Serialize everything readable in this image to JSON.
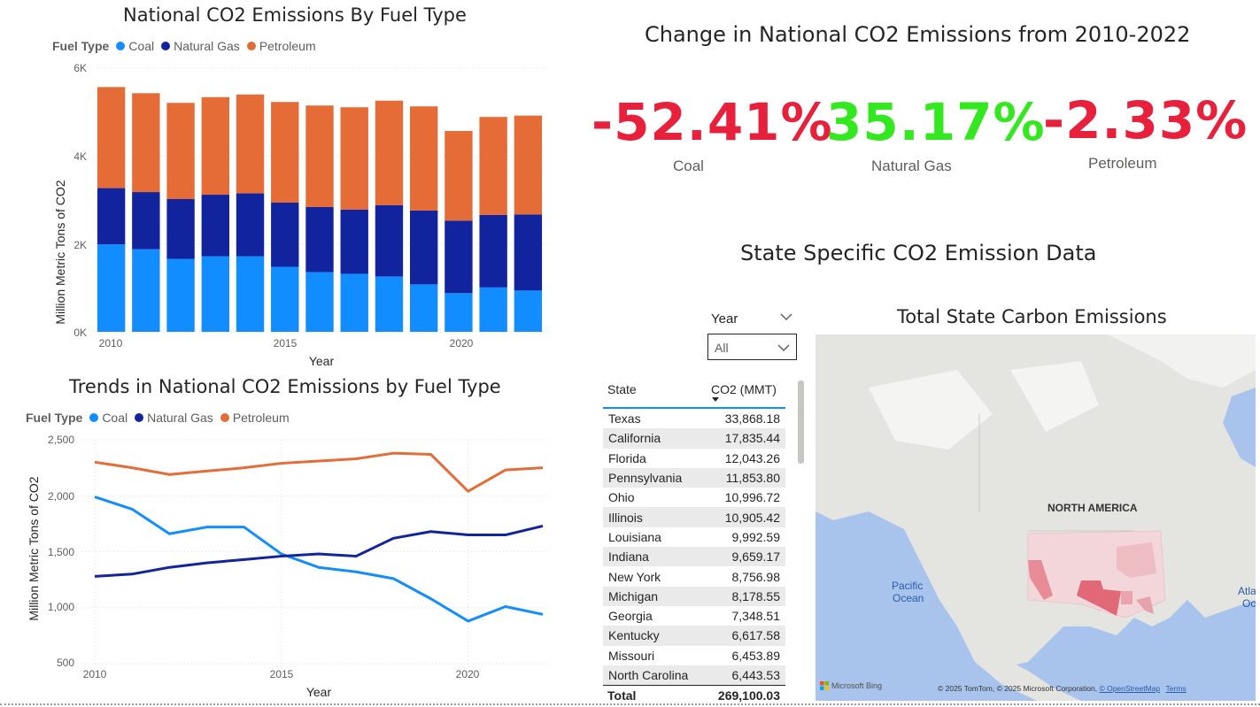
{
  "colors": {
    "coal": "#118DFF",
    "natural_gas": "#12239E",
    "petroleum": "#E66C37",
    "negative": "#E8203B",
    "positive": "#33E81F"
  },
  "bar_chart": {
    "title": "National CO2 Emissions By Fuel Type",
    "legend_title": "Fuel Type",
    "legend": [
      "Coal",
      "Natural Gas",
      "Petroleum"
    ],
    "xlabel": "Year",
    "ylabel": "Million Metric Tons of CO2",
    "y_ticks": [
      "6K",
      "4K",
      "2K",
      "0K"
    ],
    "x_ticks": [
      "2010",
      "2015",
      "2020"
    ]
  },
  "line_chart": {
    "title": "Trends in National CO2 Emissions by Fuel Type",
    "legend_title": "Fuel Type",
    "legend": [
      "Coal",
      "Natural Gas",
      "Petroleum"
    ],
    "xlabel": "Year",
    "ylabel": "Million Metric Tons of CO2",
    "y_ticks": [
      "2,500",
      "2,000",
      "1,500",
      "1,000",
      "500"
    ],
    "x_ticks": [
      "2010",
      "2015",
      "2020"
    ]
  },
  "chart_data": [
    {
      "type": "bar",
      "stacked": true,
      "title": "National CO2 Emissions By Fuel Type",
      "xlabel": "Year",
      "ylabel": "Million Metric Tons of CO2",
      "ylim": [
        0,
        6000
      ],
      "categories": [
        2010,
        2011,
        2012,
        2013,
        2014,
        2015,
        2016,
        2017,
        2018,
        2019,
        2020,
        2021,
        2022
      ],
      "series": [
        {
          "name": "Coal",
          "values": [
            1990,
            1880,
            1660,
            1720,
            1720,
            1480,
            1360,
            1320,
            1260,
            1080,
            880,
            1010,
            940
          ]
        },
        {
          "name": "Natural Gas",
          "values": [
            1280,
            1300,
            1360,
            1400,
            1430,
            1460,
            1480,
            1460,
            1620,
            1680,
            1650,
            1650,
            1730
          ]
        },
        {
          "name": "Petroleum",
          "values": [
            2300,
            2250,
            2190,
            2220,
            2250,
            2290,
            2310,
            2330,
            2380,
            2370,
            2040,
            2230,
            2250
          ]
        }
      ]
    },
    {
      "type": "line",
      "title": "Trends in National CO2 Emissions by Fuel Type",
      "xlabel": "Year",
      "ylabel": "Million Metric Tons of CO2",
      "ylim": [
        500,
        2500
      ],
      "x": [
        2010,
        2011,
        2012,
        2013,
        2014,
        2015,
        2016,
        2017,
        2018,
        2019,
        2020,
        2021,
        2022
      ],
      "series": [
        {
          "name": "Coal",
          "values": [
            1990,
            1880,
            1660,
            1720,
            1720,
            1480,
            1360,
            1320,
            1260,
            1080,
            880,
            1010,
            940
          ]
        },
        {
          "name": "Natural Gas",
          "values": [
            1280,
            1300,
            1360,
            1400,
            1430,
            1460,
            1480,
            1460,
            1620,
            1680,
            1650,
            1650,
            1730
          ]
        },
        {
          "name": "Petroleum",
          "values": [
            2300,
            2250,
            2190,
            2220,
            2250,
            2290,
            2310,
            2330,
            2380,
            2370,
            2040,
            2230,
            2250
          ]
        }
      ]
    }
  ],
  "kpi": {
    "title": "Change in National CO2 Emissions from 2010-2022",
    "cards": [
      {
        "value": "-52.41%",
        "label": "Coal"
      },
      {
        "value": "35.17%",
        "label": "Natural Gas"
      },
      {
        "value": "-2.33%",
        "label": "Petroleum"
      }
    ]
  },
  "state_section": {
    "title": "State Specific CO2 Emission Data"
  },
  "slicer": {
    "label": "Year",
    "value": "All"
  },
  "table": {
    "headers": [
      "State",
      "CO2 (MMT)"
    ],
    "rows": [
      [
        "Texas",
        "33,868.18"
      ],
      [
        "California",
        "17,835.44"
      ],
      [
        "Florida",
        "12,043.26"
      ],
      [
        "Pennsylvania",
        "11,853.80"
      ],
      [
        "Ohio",
        "10,996.72"
      ],
      [
        "Illinois",
        "10,905.42"
      ],
      [
        "Louisiana",
        "9,992.59"
      ],
      [
        "Indiana",
        "9,659.17"
      ],
      [
        "New York",
        "8,756.98"
      ],
      [
        "Michigan",
        "8,178.55"
      ],
      [
        "Georgia",
        "7,348.51"
      ],
      [
        "Kentucky",
        "6,617.58"
      ],
      [
        "Missouri",
        "6,453.89"
      ],
      [
        "North Carolina",
        "6,443.53"
      ]
    ],
    "total_label": "Total",
    "total_value": "269,100.03"
  },
  "map": {
    "title": "Total State Carbon Emissions",
    "labels": {
      "continent": "NORTH AMERICA",
      "pacific_1": "Pacific",
      "pacific_2": "Ocean",
      "atlantic_1": "Atla",
      "atlantic_2": "Oc"
    },
    "bing": "Microsoft Bing",
    "attribution": "© 2025 TomTom, © 2025 Microsoft Corporation,",
    "osm": "© OpenStreetMap",
    "terms": "Terms"
  }
}
